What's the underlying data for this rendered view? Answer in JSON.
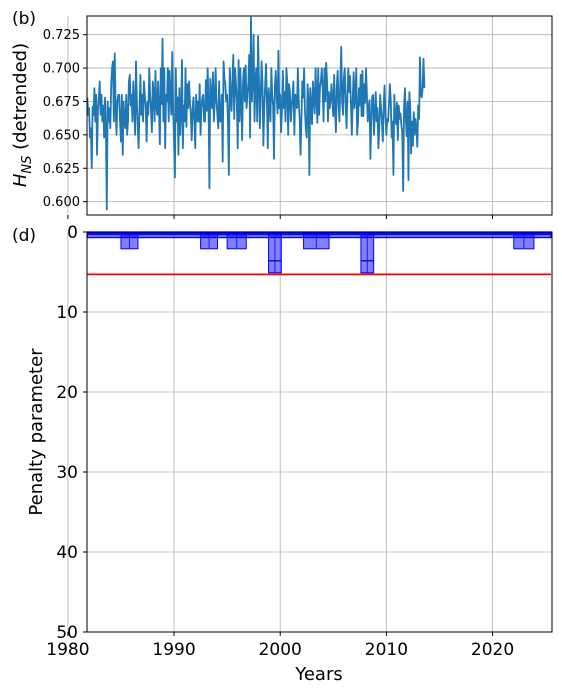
{
  "chart_data": [
    {
      "panel_label": "(b)",
      "type": "line",
      "ylabel_main": "H",
      "ylabel_sub": "NS",
      "ylabel_rest": " (detrended)",
      "xlim": [
        1981.8,
        2025.6
      ],
      "ylim": [
        0.59,
        0.739
      ],
      "yticks": [
        0.6,
        0.625,
        0.65,
        0.675,
        0.7,
        0.725
      ],
      "ytick_labels": [
        "0.600",
        "0.625",
        "0.650",
        "0.675",
        "0.700",
        "0.725"
      ],
      "grid": true,
      "line_color": "#1f77b4",
      "series": [
        {
          "x_start": 1981.83,
          "x_step": 0.083333,
          "values": [
            0.678,
            0.665,
            0.67,
            0.648,
            0.655,
            0.625,
            0.671,
            0.665,
            0.685,
            0.66,
            0.68,
            0.635,
            0.668,
            0.678,
            0.69,
            0.665,
            0.68,
            0.66,
            0.672,
            0.648,
            0.678,
            0.655,
            0.594,
            0.675,
            0.66,
            0.67,
            0.655,
            0.688,
            0.7,
            0.705,
            0.66,
            0.711,
            0.67,
            0.65,
            0.675,
            0.68,
            0.68,
            0.66,
            0.645,
            0.68,
            0.635,
            0.675,
            0.66,
            0.655,
            0.68,
            0.65,
            0.66,
            0.69,
            0.695,
            0.672,
            0.68,
            0.66,
            0.69,
            0.672,
            0.65,
            0.705,
            0.675,
            0.655,
            0.64,
            0.67,
            0.695,
            0.665,
            0.68,
            0.66,
            0.69,
            0.68,
            0.67,
            0.645,
            0.675,
            0.665,
            0.7,
            0.68,
            0.668,
            0.652,
            0.69,
            0.68,
            0.66,
            0.698,
            0.672,
            0.665,
            0.69,
            0.668,
            0.643,
            0.7,
            0.673,
            0.722,
            0.66,
            0.7,
            0.64,
            0.68,
            0.675,
            0.7,
            0.66,
            0.698,
            0.68,
            0.665,
            0.712,
            0.67,
            0.646,
            0.618,
            0.7,
            0.66,
            0.678,
            0.635,
            0.685,
            0.65,
            0.668,
            0.706,
            0.64,
            0.672,
            0.66,
            0.7,
            0.656,
            0.688,
            0.67,
            0.69,
            0.675,
            0.665,
            0.646,
            0.67,
            0.678,
            0.66,
            0.64,
            0.68,
            0.66,
            0.675,
            0.66,
            0.688,
            0.65,
            0.67,
            0.678,
            0.68,
            0.66,
            0.66,
            0.691,
            0.668,
            0.7,
            0.675,
            0.61,
            0.692,
            0.68,
            0.67,
            0.697,
            0.66,
            0.675,
            0.7,
            0.675,
            0.665,
            0.655,
            0.69,
            0.66,
            0.66,
            0.68,
            0.63,
            0.705,
            0.692,
            0.688,
            0.675,
            0.68,
            0.658,
            0.62,
            0.7,
            0.682,
            0.668,
            0.69,
            0.71,
            0.662,
            0.7,
            0.688,
            0.675,
            0.64,
            0.706,
            0.66,
            0.7,
            0.674,
            0.646,
            0.69,
            0.7,
            0.675,
            0.702,
            0.67,
            0.68,
            0.688,
            0.71,
            0.648,
            0.738,
            0.675,
            0.69,
            0.725,
            0.66,
            0.69,
            0.7,
            0.66,
            0.724,
            0.69,
            0.655,
            0.68,
            0.705,
            0.688,
            0.642,
            0.67,
            0.687,
            0.703,
            0.675,
            0.64,
            0.685,
            0.672,
            0.66,
            0.7,
            0.68,
            0.672,
            0.632,
            0.686,
            0.698,
            0.68,
            0.666,
            0.713,
            0.67,
            0.68,
            0.652,
            0.668,
            0.698,
            0.67,
            0.682,
            0.66,
            0.7,
            0.69,
            0.65,
            0.688,
            0.683,
            0.66,
            0.67,
            0.68,
            0.69,
            0.65,
            0.68,
            0.678,
            0.67,
            0.7,
            0.675,
            0.662,
            0.635,
            0.66,
            0.69,
            0.678,
            0.7,
            0.668,
            0.654,
            0.648,
            0.688,
            0.675,
            0.62,
            0.685,
            0.672,
            0.658,
            0.69,
            0.678,
            0.666,
            0.7,
            0.68,
            0.659,
            0.7,
            0.665,
            0.686,
            0.69,
            0.7,
            0.685,
            0.66,
            0.7,
            0.675,
            0.704,
            0.69,
            0.66,
            0.682,
            0.67,
            0.676,
            0.688,
            0.675,
            0.664,
            0.695,
            0.668,
            0.652,
            0.687,
            0.698,
            0.672,
            0.66,
            0.69,
            0.716,
            0.675,
            0.665,
            0.693,
            0.7,
            0.672,
            0.655,
            0.68,
            0.7,
            0.682,
            0.694,
            0.672,
            0.65,
            0.676,
            0.697,
            0.67,
            0.68,
            0.7,
            0.65,
            0.66,
            0.685,
            0.672,
            0.695,
            0.664,
            0.698,
            0.664,
            0.688,
            0.674,
            0.7,
            0.681,
            0.66,
            0.67,
            0.676,
            0.632,
            0.66,
            0.678,
            0.68,
            0.65,
            0.666,
            0.682,
            0.66,
            0.67,
            0.64,
            0.654,
            0.68,
            0.67,
            0.66,
            0.645,
            0.672,
            0.687,
            0.664,
            0.65,
            0.662,
            0.66,
            0.674,
            0.688,
            0.676,
            0.648,
            0.66,
            0.62,
            0.68,
            0.662,
            0.658,
            0.674,
            0.646,
            0.672,
            0.662,
            0.666,
            0.657,
            0.652,
            0.608,
            0.671,
            0.685,
            0.661,
            0.649,
            0.675,
            0.616,
            0.682,
            0.671,
            0.636,
            0.66,
            0.642,
            0.667,
            0.65,
            0.662,
            0.655,
            0.641,
            0.672,
            0.662,
            0.708,
            0.68,
            0.678,
            0.685,
            0.707,
            0.685
          ]
        }
      ]
    },
    {
      "panel_label": "(d)",
      "type": "bar",
      "ylabel": "Penalty parameter",
      "xlabel": "Years",
      "xlim": [
        1981.8,
        2025.6
      ],
      "ylim": [
        0,
        50
      ],
      "y_inverted": true,
      "yticks": [
        0,
        10,
        20,
        30,
        40,
        50
      ],
      "ytick_labels": [
        "0",
        "10",
        "20",
        "30",
        "40",
        "50"
      ],
      "xticks": [
        1980,
        1990,
        2000,
        2010,
        2020
      ],
      "xtick_labels": [
        "1980",
        "1990",
        "2000",
        "2010",
        "2020"
      ],
      "grid": true,
      "bar_color": "#0000ff",
      "threshold_color": "#ff0000",
      "threshold": 5.3,
      "baseline_range": [
        1981.83,
        2025.5
      ],
      "baseline_depth": 0.7,
      "segments": [
        {
          "x_start": 1985.0,
          "x_end": 1986.6,
          "depth": 2.1
        },
        {
          "x_start": 1992.5,
          "x_end": 1994.1,
          "depth": 2.1
        },
        {
          "x_start": 1995.0,
          "x_end": 1996.8,
          "depth": 2.1
        },
        {
          "x_start": 1998.9,
          "x_end": 2000.1,
          "depth": 5.1
        },
        {
          "x_start": 2002.2,
          "x_end": 2004.6,
          "depth": 2.1
        },
        {
          "x_start": 2007.6,
          "x_end": 2008.8,
          "depth": 5.1
        },
        {
          "x_start": 2022.0,
          "x_end": 2023.9,
          "depth": 2.1
        }
      ],
      "inner_lines": [
        {
          "x_start": 1998.9,
          "x_end": 2000.1,
          "depth": 3.6
        },
        {
          "x_start": 2007.6,
          "x_end": 2008.8,
          "depth": 3.6
        }
      ]
    }
  ]
}
